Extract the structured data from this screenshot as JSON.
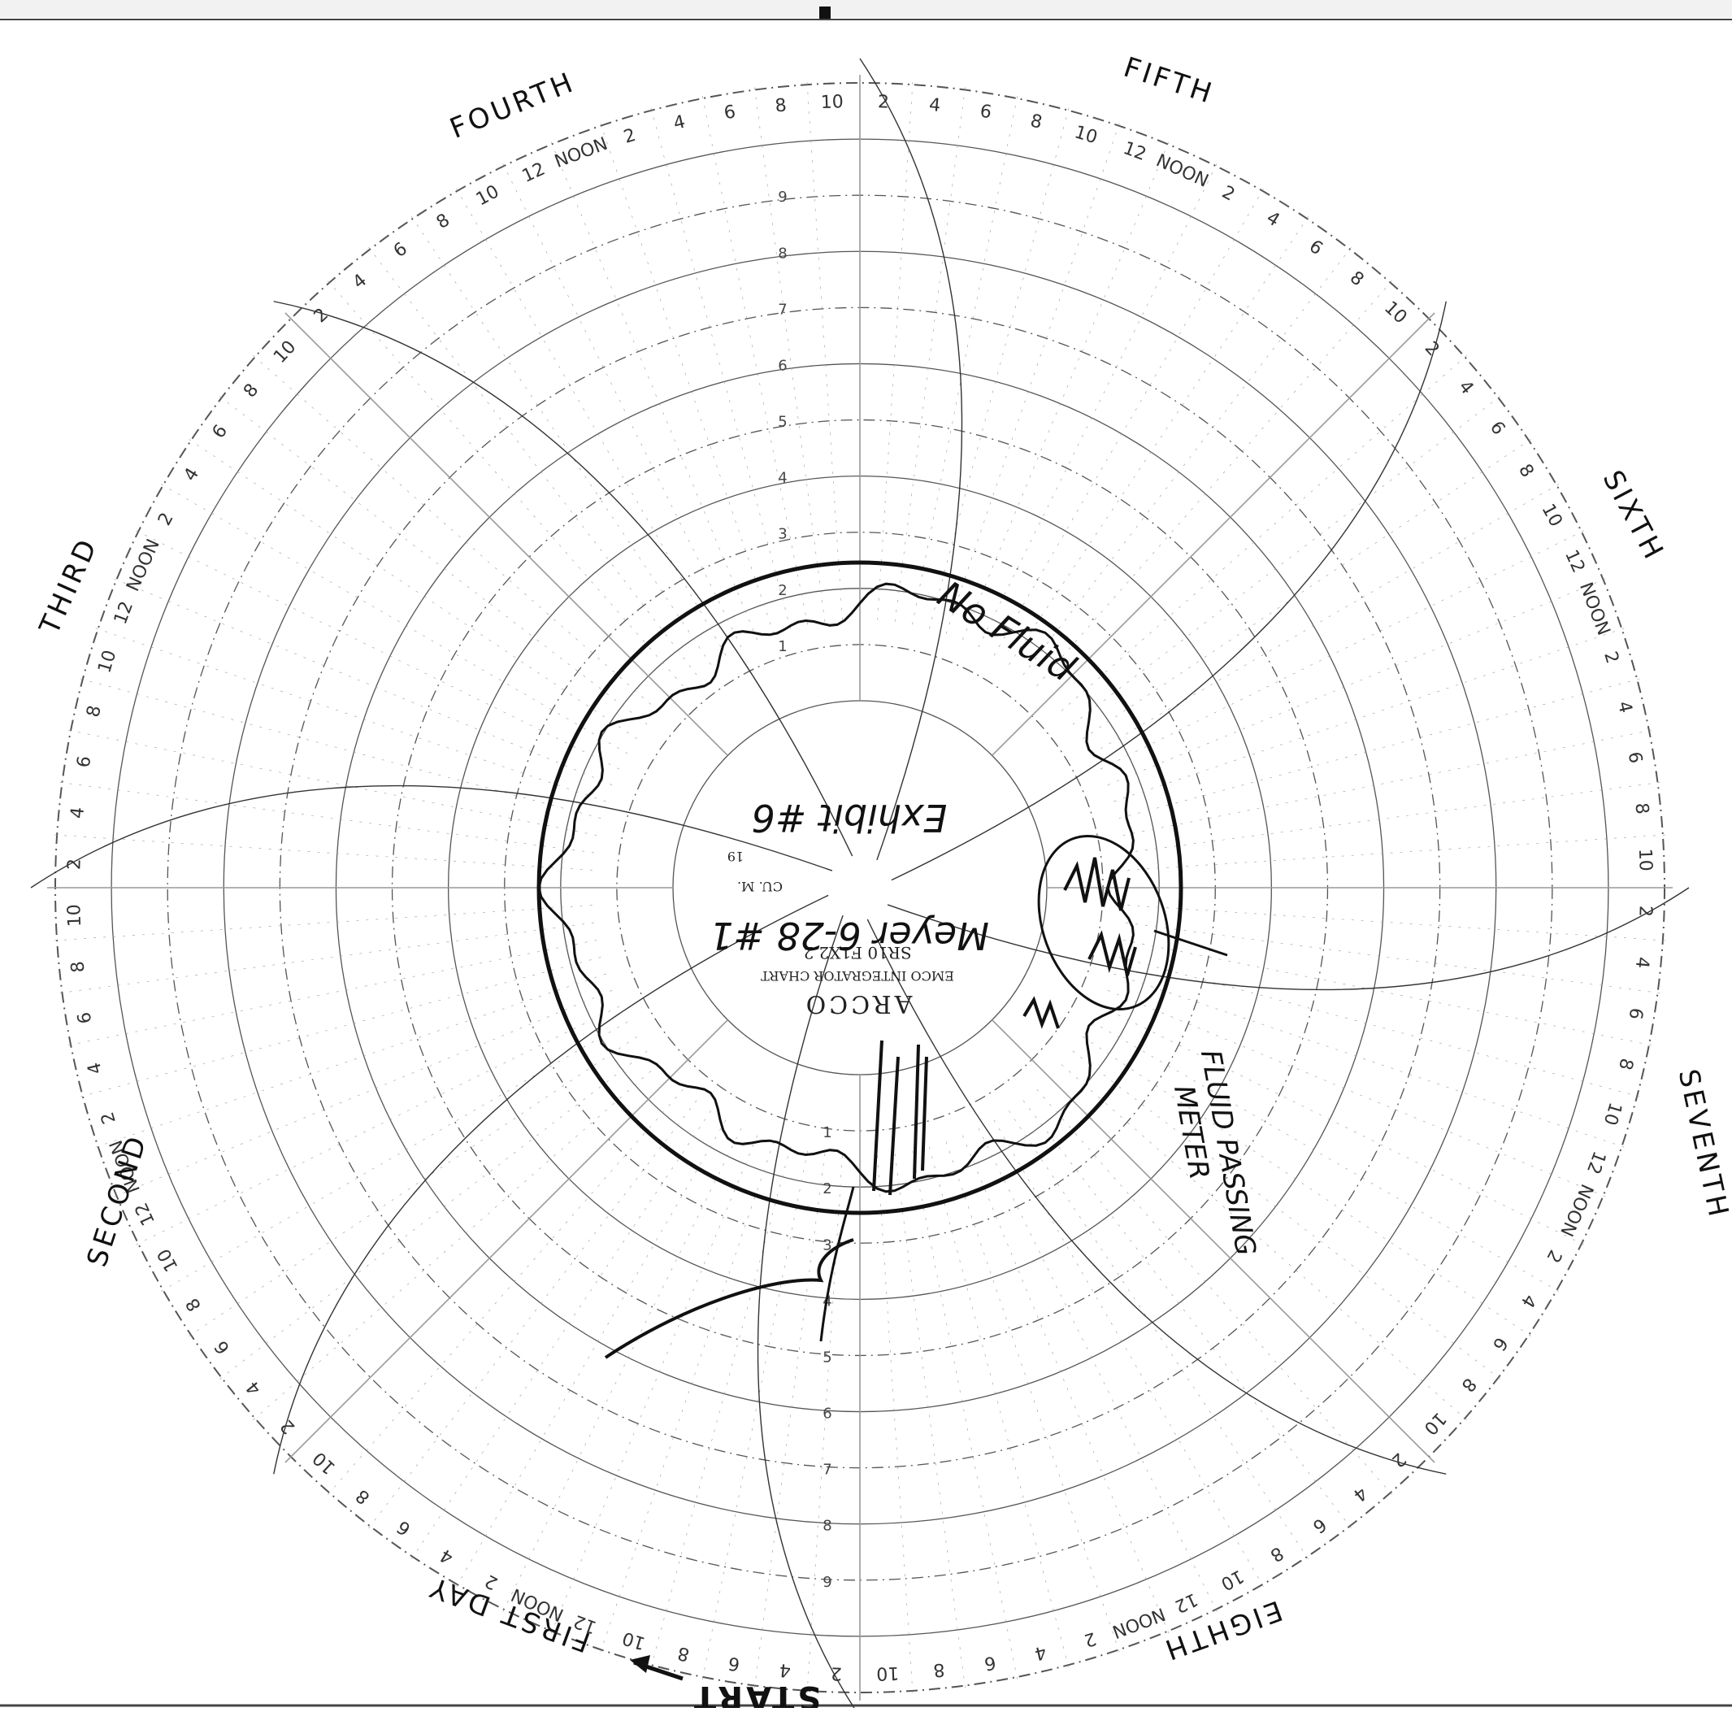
{
  "chart_data": {
    "type": "circular-chart",
    "days": [
      "FIRST DAY",
      "SECOND",
      "THIRD",
      "FOURTH",
      "FIFTH",
      "SIXTH",
      "SEVENTH",
      "EIGHTH"
    ],
    "hour_ticks": [
      "2",
      "4",
      "6",
      "8",
      "10",
      "12",
      "NOON",
      "2",
      "4",
      "6",
      "8",
      "10"
    ],
    "radial_scale": [
      "1",
      "2",
      "3",
      "4",
      "5",
      "6",
      "7",
      "8",
      "9"
    ],
    "start_label": "START",
    "center_print": {
      "brand": "ARCCO",
      "chart_name": "EMCO INTEGRATOR CHART",
      "code": "SR10 F1X2 2",
      "unit_cu": "CU. M.",
      "unit_19": "19"
    },
    "annotations": {
      "exhibit": "Exhibit #6",
      "meter": "Meyer 6-28 #1",
      "no_fluid": "No Fluid",
      "fluid_passing_1": "FLUID PASSING",
      "fluid_passing_2": "METER"
    },
    "grid": true
  }
}
